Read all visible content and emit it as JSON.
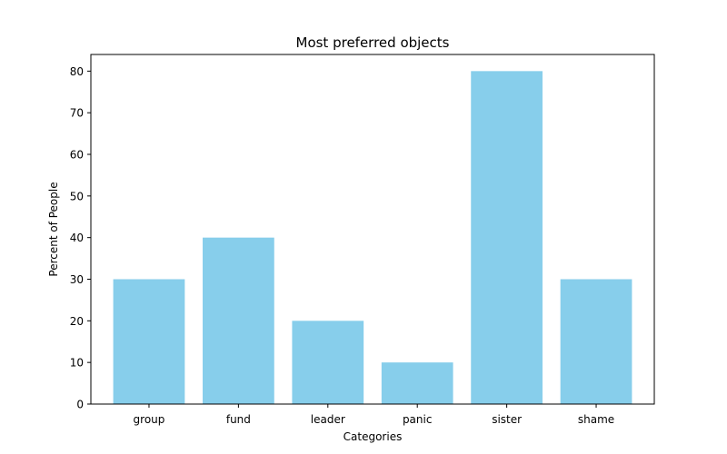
{
  "chart_data": {
    "type": "bar",
    "title": "Most preferred objects",
    "xlabel": "Categories",
    "ylabel": "Percent of People",
    "categories": [
      "group",
      "fund",
      "leader",
      "panic",
      "sister",
      "shame"
    ],
    "values": [
      30,
      40,
      20,
      10,
      80,
      30
    ],
    "ylim": [
      0,
      84
    ],
    "yticks": [
      0,
      10,
      20,
      30,
      40,
      50,
      60,
      70,
      80
    ],
    "bar_color": "#87ceeb",
    "grid": false,
    "legend": "none"
  }
}
